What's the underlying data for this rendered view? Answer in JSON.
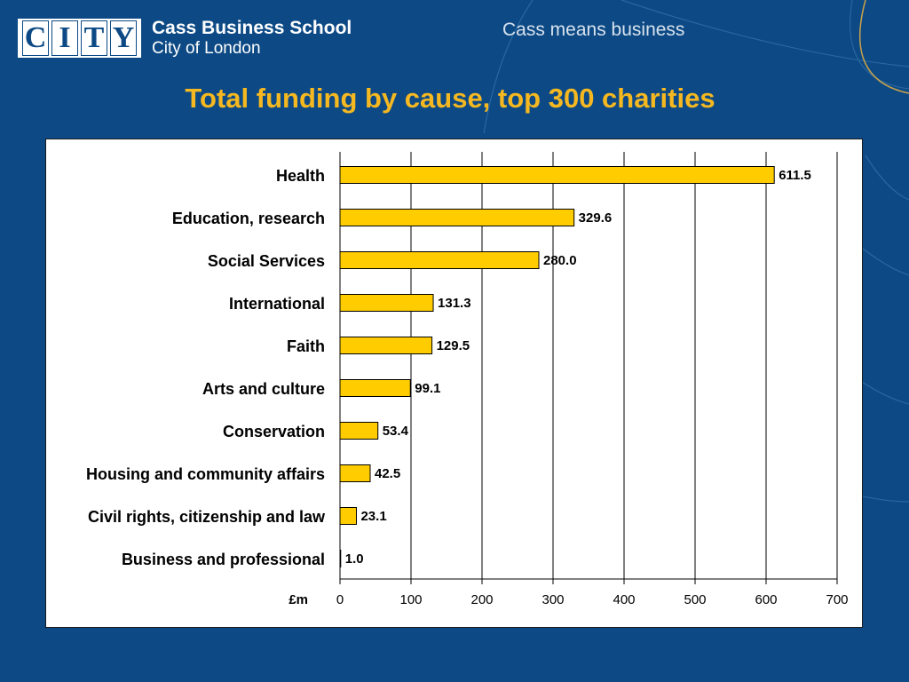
{
  "header": {
    "logo_letters": [
      "C",
      "I",
      "T",
      "Y"
    ],
    "school_name": "Cass Business School",
    "school_city": "City of London",
    "tagline": "Cass means business"
  },
  "colors": {
    "background": "#0d4a85",
    "title": "#f5b820",
    "bar_fill": "#ffcc00",
    "bar_stroke": "#000000"
  },
  "chart_data": {
    "type": "bar",
    "orientation": "horizontal",
    "title": "Total funding by cause, top 300 charities",
    "xlabel": "£m",
    "ylabel": "",
    "xlim": [
      0,
      700
    ],
    "xticks": [
      0,
      100,
      200,
      300,
      400,
      500,
      600,
      700
    ],
    "grid": "vertical",
    "categories": [
      "Health",
      "Education, research",
      "Social Services",
      "International",
      "Faith",
      "Arts and culture",
      "Conservation",
      "Housing and community affairs",
      "Civil rights, citizenship and law",
      "Business and professional"
    ],
    "values": [
      611.5,
      329.6,
      280.0,
      131.3,
      129.5,
      99.1,
      53.4,
      42.5,
      23.1,
      1.0
    ],
    "value_labels": [
      "611.5",
      "329.6",
      "280.0",
      "131.3",
      "129.5",
      "99.1",
      "53.4",
      "42.5",
      "23.1",
      "1.0"
    ]
  }
}
